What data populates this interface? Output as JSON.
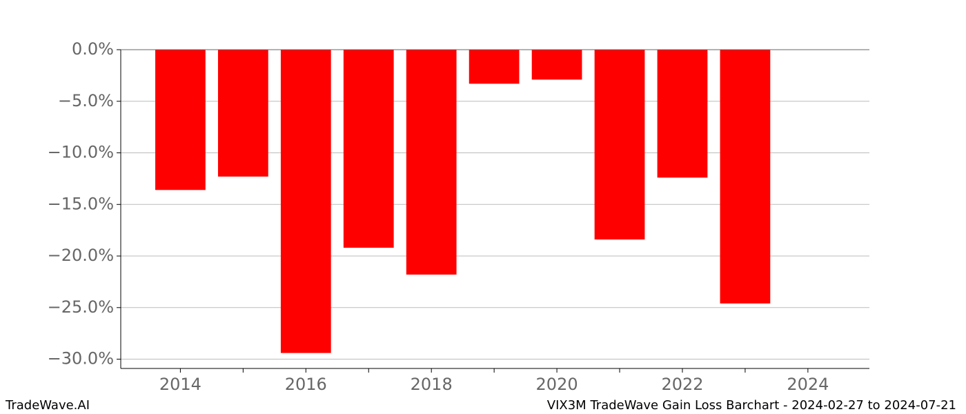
{
  "chart_data": {
    "type": "bar",
    "x": [
      2014,
      2015,
      2016,
      2017,
      2018,
      2019,
      2020,
      2021,
      2022,
      2023
    ],
    "values": [
      -13.6,
      -12.3,
      -29.4,
      -19.2,
      -21.8,
      -3.3,
      -2.9,
      -18.4,
      -12.4,
      -24.6
    ],
    "color": "#ff0000",
    "xlim": [
      2013.05,
      2024.98
    ],
    "xticks": [
      2014,
      2016,
      2018,
      2020,
      2022,
      2024
    ],
    "xminor_ticks": [
      2015,
      2017,
      2019,
      2021,
      2023
    ],
    "ylim": [
      -30.9,
      0
    ],
    "yticks": [
      {
        "value": 0,
        "label": "0.0%"
      },
      {
        "value": -5,
        "label": "−5.0%"
      },
      {
        "value": -10,
        "label": "−10.0%"
      },
      {
        "value": -15,
        "label": "−15.0%"
      },
      {
        "value": -20,
        "label": "−20.0%"
      },
      {
        "value": -25,
        "label": "−25.0%"
      },
      {
        "value": -30,
        "label": "−30.0%"
      }
    ],
    "grid": true,
    "footer_left": "TradeWave.AI",
    "footer_right": "VIX3M TradeWave Gain Loss Barchart - 2024-02-27 to 2024-07-21"
  }
}
